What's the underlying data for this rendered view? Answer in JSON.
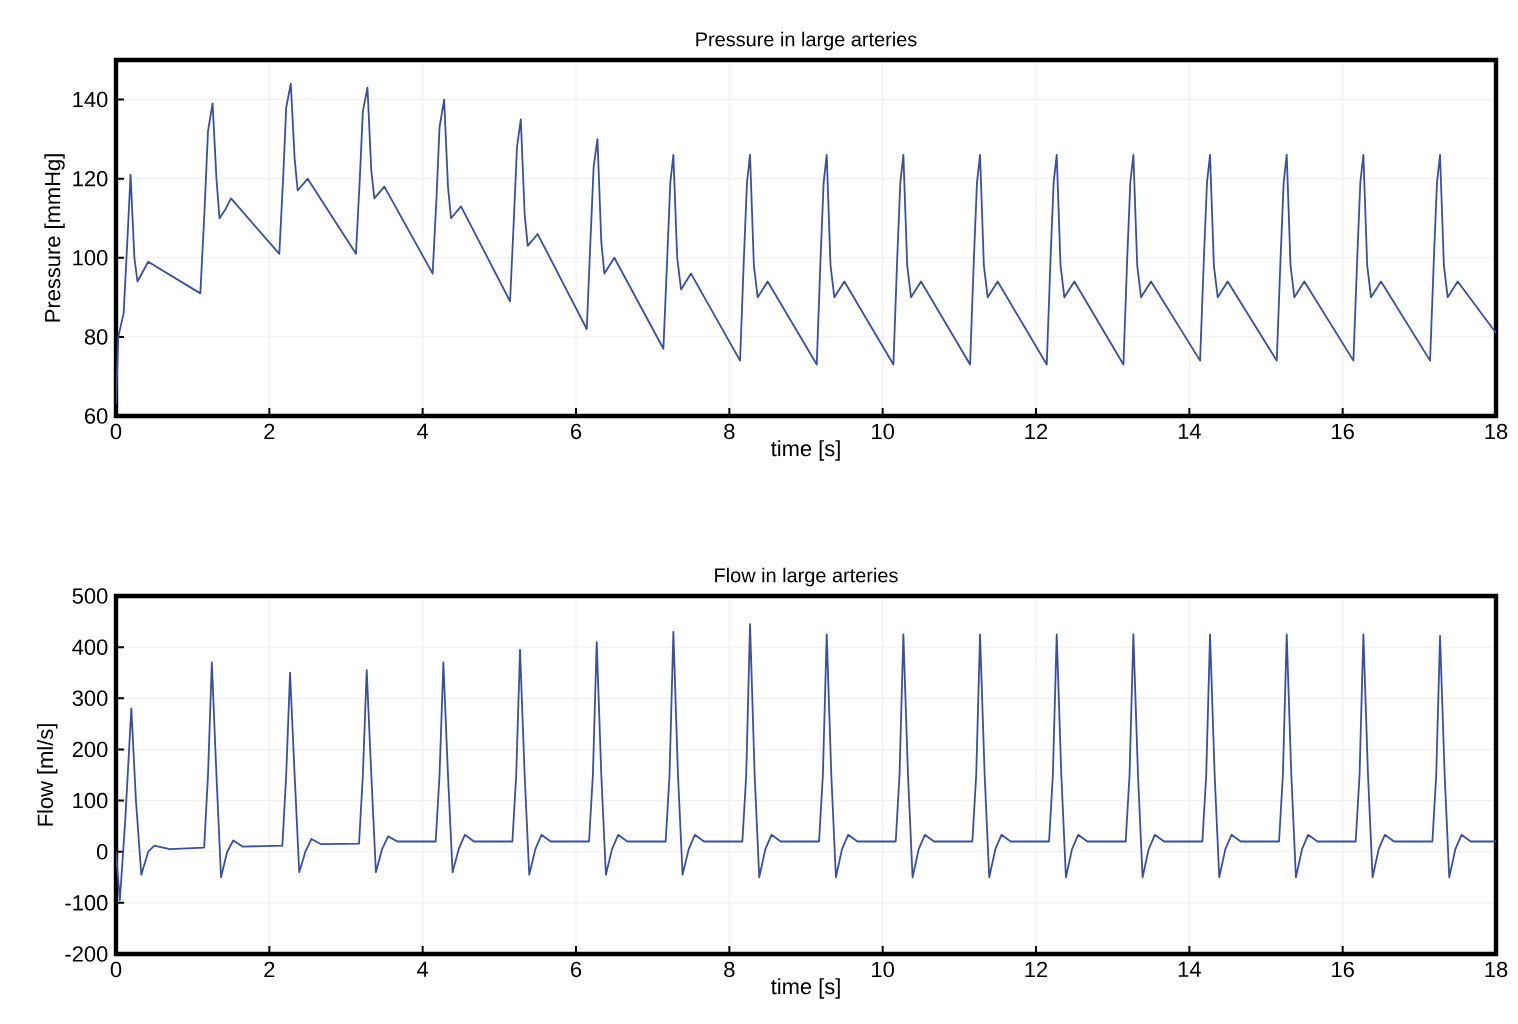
{
  "chart_data": [
    {
      "type": "line",
      "title": "Pressure in large arteries",
      "xlabel": "time [s]",
      "ylabel": "Pressure [mmHg]",
      "xlim": [
        0,
        18
      ],
      "ylim": [
        60,
        150
      ],
      "xticks": [
        0,
        2,
        4,
        6,
        8,
        10,
        12,
        14,
        16,
        18
      ],
      "yticks": [
        60,
        80,
        100,
        120,
        140
      ],
      "grid": true,
      "series": [
        {
          "color": "#3a4fa0",
          "x": [
            0,
            0.03,
            0.1,
            0.15,
            0.19,
            0.24,
            0.28,
            0.42,
            1.1,
            1.15,
            1.2,
            1.26,
            1.31,
            1.35,
            1.42,
            1.5,
            2.13,
            2.18,
            2.22,
            2.28,
            2.33,
            2.37,
            2.5,
            3.13,
            3.18,
            3.22,
            3.28,
            3.33,
            3.37,
            3.5,
            4.13,
            4.18,
            4.22,
            4.28,
            4.33,
            4.37,
            4.5,
            5.14,
            5.19,
            5.23,
            5.28,
            5.33,
            5.37,
            5.5,
            6.14,
            6.19,
            6.23,
            6.28,
            6.33,
            6.37,
            6.5,
            7.14,
            7.19,
            7.23,
            7.27,
            7.32,
            7.37,
            7.5,
            8.14,
            8.19,
            8.23,
            8.27,
            8.32,
            8.37,
            8.5,
            9.14,
            9.19,
            9.23,
            9.27,
            9.32,
            9.37,
            9.5,
            10.14,
            10.19,
            10.23,
            10.27,
            10.32,
            10.37,
            10.5,
            11.14,
            11.19,
            11.23,
            11.27,
            11.32,
            11.37,
            11.5,
            12.14,
            12.19,
            12.23,
            12.27,
            12.32,
            12.37,
            12.5,
            13.14,
            13.19,
            13.23,
            13.27,
            13.32,
            13.37,
            13.5,
            14.14,
            14.19,
            14.23,
            14.27,
            14.32,
            14.37,
            14.5,
            15.14,
            15.19,
            15.23,
            15.27,
            15.32,
            15.37,
            15.5,
            16.14,
            16.19,
            16.23,
            16.27,
            16.32,
            16.37,
            16.5,
            17.14,
            17.19,
            17.23,
            17.27,
            17.32,
            17.37,
            17.5,
            18
          ],
          "values": [
            63,
            80,
            86,
            105,
            121,
            100,
            94,
            99,
            91,
            110,
            132,
            139,
            120,
            110,
            112,
            115,
            101,
            120,
            138,
            144,
            125,
            117,
            120,
            101,
            120,
            137,
            143,
            122,
            115,
            118,
            96,
            115,
            133,
            140,
            118,
            110,
            113,
            89,
            110,
            128,
            135,
            111,
            103,
            106,
            82,
            105,
            123,
            130,
            104,
            96,
            100,
            77,
            100,
            119,
            126,
            100,
            92,
            96,
            74,
            100,
            119,
            126,
            98,
            90,
            94,
            73,
            100,
            119,
            126,
            98,
            90,
            94,
            73,
            100,
            119,
            126,
            98,
            90,
            94,
            73,
            100,
            119,
            126,
            98,
            90,
            94,
            73,
            100,
            119,
            126,
            98,
            90,
            94,
            73,
            100,
            119,
            126,
            98,
            90,
            94,
            74,
            100,
            119,
            126,
            98,
            90,
            94,
            74,
            100,
            119,
            126,
            98,
            90,
            94,
            74,
            100,
            119,
            126,
            98,
            90,
            94,
            74,
            100,
            119,
            126,
            98,
            90,
            94,
            81
          ]
        }
      ]
    },
    {
      "type": "line",
      "title": "Flow in large arteries",
      "xlabel": "time [s]",
      "ylabel": "Flow [ml/s]",
      "xlim": [
        0,
        18
      ],
      "ylim": [
        -200,
        500
      ],
      "xticks": [
        0,
        2,
        4,
        6,
        8,
        10,
        12,
        14,
        16,
        18
      ],
      "yticks": [
        -200,
        -100,
        0,
        100,
        200,
        300,
        400,
        500
      ],
      "grid": true,
      "series": [
        {
          "color": "#3a4fa0",
          "x": [
            0,
            0.05,
            0.12,
            0.2,
            0.26,
            0.33,
            0.42,
            0.5,
            0.7,
            1.15,
            1.2,
            1.25,
            1.31,
            1.37,
            1.45,
            1.53,
            1.65,
            2.17,
            2.22,
            2.27,
            2.33,
            2.39,
            2.47,
            2.55,
            2.67,
            3.17,
            3.22,
            3.27,
            3.33,
            3.39,
            3.47,
            3.55,
            3.67,
            4.17,
            4.22,
            4.27,
            4.33,
            4.39,
            4.47,
            4.55,
            4.67,
            5.17,
            5.22,
            5.27,
            5.33,
            5.39,
            5.47,
            5.55,
            5.67,
            6.17,
            6.22,
            6.27,
            6.33,
            6.39,
            6.47,
            6.55,
            6.67,
            7.17,
            7.22,
            7.27,
            7.33,
            7.39,
            7.47,
            7.55,
            7.67,
            8.17,
            8.22,
            8.27,
            8.33,
            8.39,
            8.47,
            8.55,
            8.67,
            9.17,
            9.22,
            9.27,
            9.33,
            9.39,
            9.47,
            9.55,
            9.67,
            10.17,
            10.22,
            10.27,
            10.33,
            10.39,
            10.47,
            10.55,
            10.67,
            11.17,
            11.22,
            11.27,
            11.33,
            11.39,
            11.47,
            11.55,
            11.67,
            12.17,
            12.22,
            12.27,
            12.33,
            12.39,
            12.47,
            12.55,
            12.67,
            13.17,
            13.22,
            13.27,
            13.33,
            13.39,
            13.47,
            13.55,
            13.67,
            14.17,
            14.22,
            14.27,
            14.33,
            14.39,
            14.47,
            14.55,
            14.67,
            15.17,
            15.22,
            15.27,
            15.33,
            15.39,
            15.47,
            15.55,
            15.67,
            16.17,
            16.22,
            16.27,
            16.33,
            16.39,
            16.47,
            16.55,
            16.67,
            17.17,
            17.22,
            17.27,
            17.33,
            17.39,
            17.47,
            17.55,
            17.67,
            18
          ],
          "values": [
            0,
            -95,
            60,
            280,
            100,
            -45,
            0,
            12,
            5,
            8,
            150,
            370,
            150,
            -50,
            0,
            22,
            10,
            12,
            150,
            350,
            150,
            -40,
            0,
            25,
            15,
            16,
            150,
            355,
            150,
            -40,
            5,
            30,
            20,
            20,
            150,
            370,
            150,
            -40,
            5,
            33,
            20,
            20,
            150,
            395,
            150,
            -45,
            5,
            33,
            20,
            20,
            150,
            410,
            150,
            -45,
            5,
            33,
            20,
            20,
            150,
            430,
            150,
            -45,
            5,
            33,
            20,
            20,
            150,
            445,
            150,
            -50,
            5,
            33,
            20,
            20,
            150,
            425,
            150,
            -50,
            5,
            33,
            20,
            20,
            150,
            425,
            150,
            -50,
            5,
            33,
            20,
            20,
            150,
            425,
            150,
            -50,
            5,
            33,
            20,
            20,
            150,
            425,
            150,
            -50,
            5,
            33,
            20,
            20,
            150,
            425,
            150,
            -50,
            5,
            33,
            20,
            20,
            150,
            425,
            150,
            -50,
            5,
            33,
            20,
            20,
            150,
            425,
            150,
            -50,
            5,
            33,
            20,
            20,
            150,
            425,
            150,
            -50,
            5,
            33,
            20,
            20,
            150,
            422,
            150,
            -50,
            5,
            33,
            20,
            20
          ]
        }
      ]
    }
  ]
}
